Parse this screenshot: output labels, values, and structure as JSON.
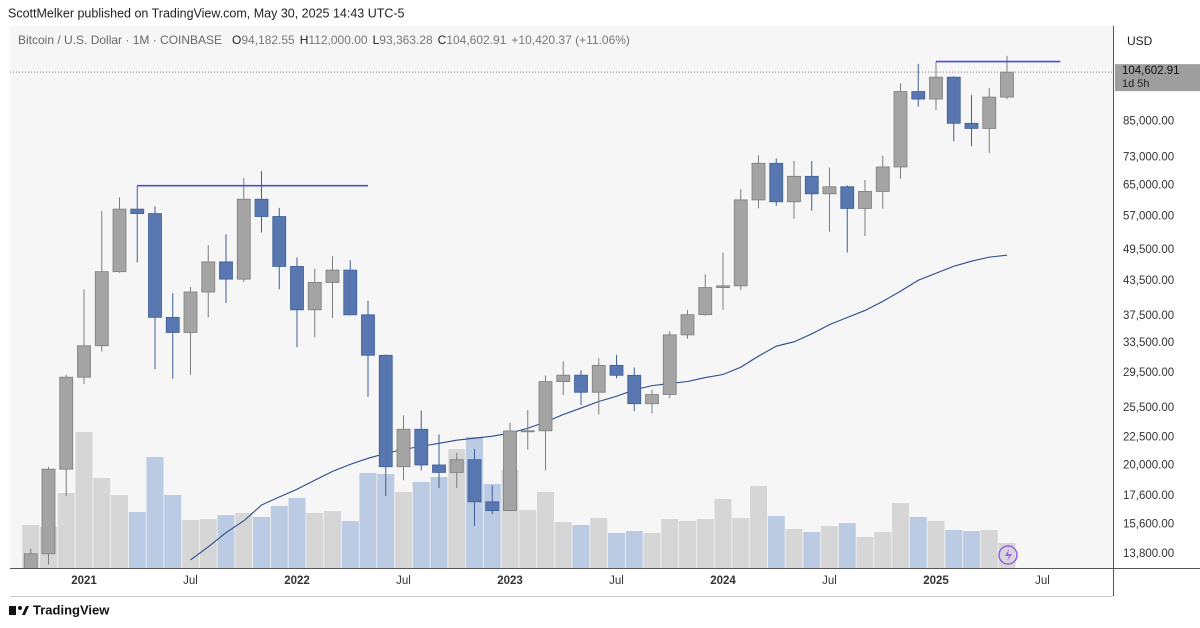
{
  "header": {
    "published": "ScottMelker published on TradingView.com, May 30, 2025 14:43 UTC-5",
    "footer_logo": "TradingView"
  },
  "chart_data": {
    "type": "candlestick",
    "title": "Bitcoin / U.S. Dollar · 1M · COINBASE",
    "legend_items": [
      {
        "key": "O",
        "text": "94,182.55"
      },
      {
        "key": "H",
        "text": "112,000.00"
      },
      {
        "key": "L",
        "text": "93,363.28"
      },
      {
        "key": "C",
        "text": "104,602.91"
      }
    ],
    "change": "+10,420.37 (+11.06%)",
    "currency": "USD",
    "price_tag": "104,602.91",
    "countdown": "1d 5h",
    "x": [
      "2020-10",
      "2020-11",
      "2020-12",
      "2021-01",
      "2021-02",
      "2021-03",
      "2021-04",
      "2021-05",
      "2021-06",
      "2021-07",
      "2021-08",
      "2021-09",
      "2021-10",
      "2021-11",
      "2021-12",
      "2022-01",
      "2022-02",
      "2022-03",
      "2022-04",
      "2022-05",
      "2022-06",
      "2022-07",
      "2022-08",
      "2022-09",
      "2022-10",
      "2022-11",
      "2022-12",
      "2023-01",
      "2023-02",
      "2023-03",
      "2023-04",
      "2023-05",
      "2023-06",
      "2023-07",
      "2023-08",
      "2023-09",
      "2023-10",
      "2023-11",
      "2023-12",
      "2024-01",
      "2024-02",
      "2024-03",
      "2024-04",
      "2024-05",
      "2024-06",
      "2024-07",
      "2024-08",
      "2024-09",
      "2024-10",
      "2024-11",
      "2024-12",
      "2025-01",
      "2025-02",
      "2025-03",
      "2025-04",
      "2025-05"
    ],
    "open": [
      10780,
      13800,
      19700,
      29000,
      33100,
      45200,
      58800,
      57700,
      37300,
      35000,
      41500,
      47100,
      43800,
      61300,
      57000,
      46200,
      38500,
      43200,
      45500,
      37700,
      31800,
      19900,
      23300,
      20050,
      19430,
      20500,
      17170,
      16550,
      23130,
      23150,
      28470,
      29250,
      27220,
      30480,
      29230,
      25940,
      26960,
      34650,
      37720,
      42280,
      42580,
      61130,
      71300,
      60640,
      67490,
      62700,
      64600,
      58970,
      63330,
      70200,
      96400,
      93400,
      102400,
      84350,
      82550,
      94182.55
    ],
    "high": [
      14100,
      19900,
      29300,
      41950,
      58350,
      61800,
      64900,
      59500,
      41300,
      42400,
      50500,
      52900,
      67000,
      69000,
      59100,
      47990,
      45800,
      48200,
      47400,
      40000,
      31900,
      24700,
      25200,
      22800,
      21100,
      21450,
      18400,
      23950,
      25250,
      29200,
      31000,
      29850,
      31400,
      31850,
      30200,
      27500,
      35200,
      38450,
      44700,
      48970,
      64000,
      73800,
      72800,
      71980,
      72000,
      70000,
      65000,
      66500,
      73600,
      99800,
      108300,
      109350,
      102800,
      95000,
      97900,
      112000
    ],
    "low": [
      10550,
      13200,
      17600,
      28200,
      32300,
      45000,
      47000,
      30000,
      28800,
      29300,
      37300,
      39600,
      43300,
      53300,
      42000,
      32900,
      34300,
      37200,
      37600,
      26700,
      17600,
      18800,
      19600,
      18200,
      18200,
      15500,
      16300,
      16500,
      21400,
      19600,
      26900,
      25800,
      24800,
      28860,
      25150,
      24900,
      26550,
      34100,
      37600,
      38500,
      41850,
      59000,
      59600,
      56500,
      58400,
      53500,
      49000,
      52500,
      58900,
      66800,
      90500,
      89200,
      78200,
      76600,
      74400,
      93363.28
    ],
    "close": [
      13800,
      19700,
      29000,
      33100,
      45200,
      58800,
      57700,
      37300,
      35000,
      41500,
      47100,
      43800,
      61300,
      57000,
      46200,
      38500,
      43200,
      45500,
      37700,
      31800,
      19900,
      23300,
      20050,
      19430,
      20500,
      17170,
      16550,
      23130,
      23150,
      28470,
      29250,
      27220,
      30480,
      29230,
      25940,
      26960,
      34650,
      37720,
      42280,
      42580,
      61130,
      71300,
      60640,
      67490,
      62700,
      64600,
      58970,
      63330,
      70200,
      96400,
      93400,
      102400,
      84350,
      82550,
      94182.55,
      104602.91
    ],
    "volume": [
      43,
      41,
      75,
      136,
      90,
      73,
      56,
      111,
      73,
      48,
      49,
      53,
      55,
      51,
      62,
      70,
      55,
      57,
      47,
      95,
      94,
      76,
      86,
      91,
      119,
      131,
      84,
      98,
      58,
      76,
      46,
      43,
      50,
      35,
      37,
      35,
      49,
      47,
      49,
      69,
      50,
      82,
      52,
      39,
      36,
      42,
      45,
      31,
      36,
      65,
      51,
      47,
      38,
      37,
      38,
      25
    ],
    "moving_average": [
      null,
      null,
      null,
      null,
      null,
      null,
      null,
      null,
      null,
      13450,
      14210,
      15080,
      15850,
      16940,
      17520,
      18100,
      18800,
      19520,
      20100,
      20620,
      21050,
      21410,
      21680,
      21960,
      22250,
      22440,
      22630,
      22920,
      23400,
      24020,
      24790,
      25470,
      26180,
      26770,
      27490,
      27990,
      28230,
      28480,
      28960,
      29330,
      30240,
      31690,
      33040,
      33650,
      34800,
      36180,
      37270,
      38400,
      39900,
      41630,
      43590,
      44900,
      46250,
      47230,
      48050,
      48450
    ],
    "ma_color": "#2b4b8c",
    "up_color": "#a4a4a4",
    "down_color": "#5877b0",
    "volume_up_color": "#d6d6d6",
    "volume_down_color": "#bccbe4",
    "resistance_lines": [
      {
        "value": 64900,
        "from": "2021-04",
        "to": "2022-05"
      },
      {
        "value": 109350,
        "from": "2025-01",
        "to": "2025-08"
      }
    ],
    "resistance_color": "#4b4bdc",
    "log_scale": true,
    "grid": false,
    "ylim": [
      13000,
      127000
    ],
    "yticks": [
      {
        "value": 13800,
        "label": "13,800.00"
      },
      {
        "value": 15600,
        "label": "15,600.00"
      },
      {
        "value": 17600,
        "label": "17,600.00"
      },
      {
        "value": 20000,
        "label": "20,000.00"
      },
      {
        "value": 22500,
        "label": "22,500.00"
      },
      {
        "value": 25500,
        "label": "25,500.00"
      },
      {
        "value": 29500,
        "label": "29,500.00"
      },
      {
        "value": 33500,
        "label": "33,500.00"
      },
      {
        "value": 37500,
        "label": "37,500.00"
      },
      {
        "value": 43500,
        "label": "43,500.00"
      },
      {
        "value": 49500,
        "label": "49,500.00"
      },
      {
        "value": 57000,
        "label": "57,000.00"
      },
      {
        "value": 65000,
        "label": "65,000.00"
      },
      {
        "value": 73000,
        "label": "73,000.00"
      },
      {
        "value": 85000,
        "label": "85,000.00"
      }
    ],
    "xticks": [
      {
        "value": "2021-01",
        "label": "2021"
      },
      {
        "value": "2021-07",
        "label": "Jul"
      },
      {
        "value": "2022-01",
        "label": "2022"
      },
      {
        "value": "2022-07",
        "label": "Jul"
      },
      {
        "value": "2023-01",
        "label": "2023"
      },
      {
        "value": "2023-07",
        "label": "Jul"
      },
      {
        "value": "2024-01",
        "label": "2024"
      },
      {
        "value": "2024-07",
        "label": "Jul"
      },
      {
        "value": "2025-01",
        "label": "2025"
      },
      {
        "value": "2025-07",
        "label": "Jul"
      }
    ]
  }
}
